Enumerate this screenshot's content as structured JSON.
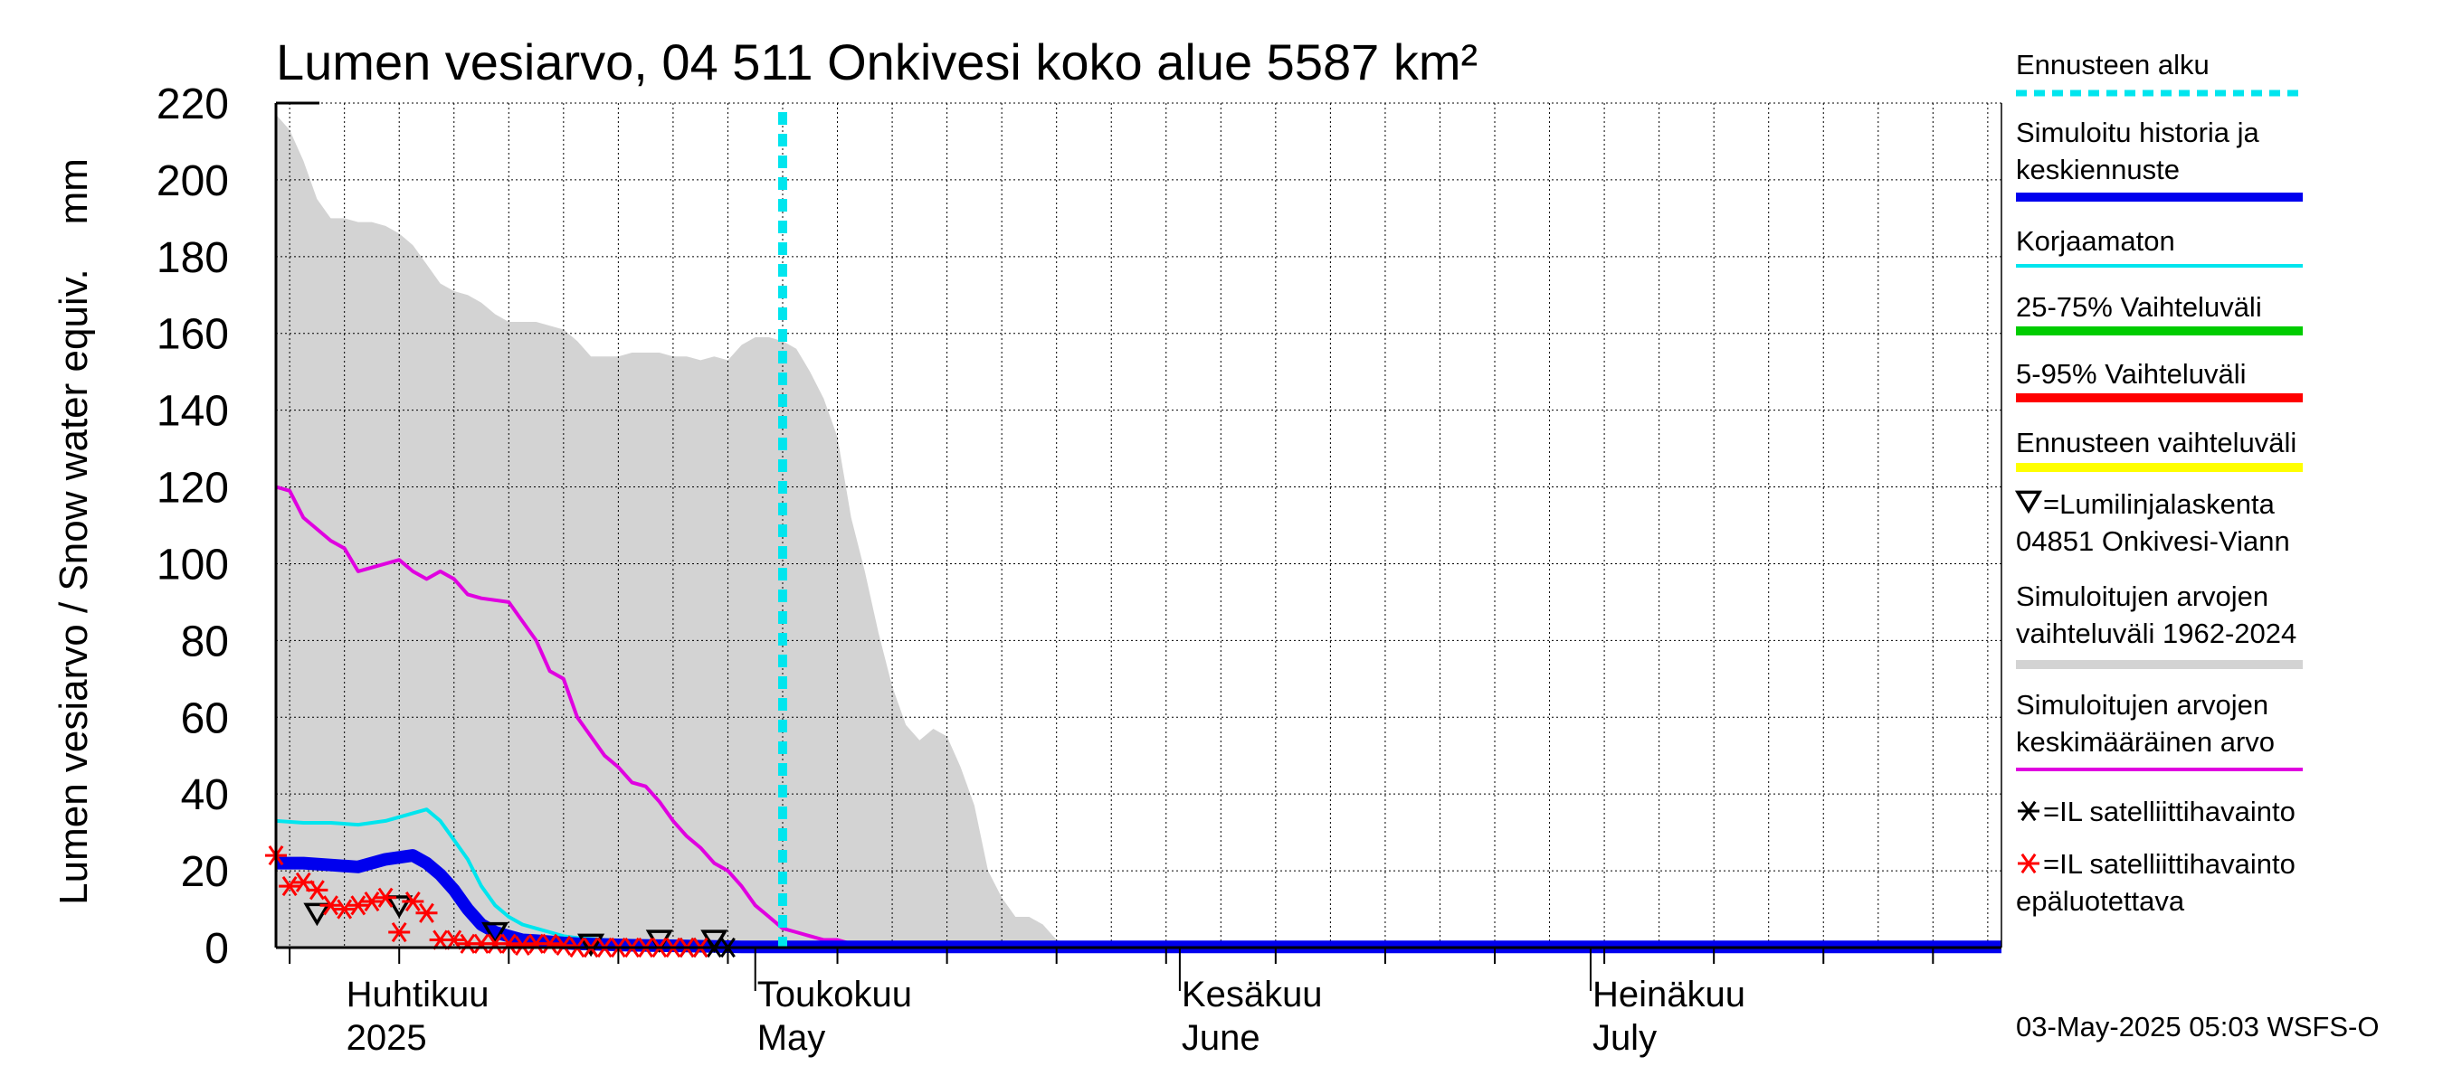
{
  "chart_data": {
    "type": "line",
    "title": "Lumen vesiarvo, 04 511 Onkivesi koko alue 5587 km²",
    "ylabel": "Lumen vesiarvo / Snow water equiv.    mm",
    "ylim": [
      0,
      220
    ],
    "yticks": [
      0,
      20,
      40,
      60,
      80,
      100,
      120,
      140,
      160,
      180,
      200,
      220
    ],
    "xlim": [
      "2025-03-27",
      "2025-07-31"
    ],
    "x_tick_labels": [
      {
        "date": "2025-04-01",
        "line1": "Huhtikuu",
        "line2": "2025"
      },
      {
        "date": "2025-05-01",
        "line1": "Toukokuu",
        "line2": "May"
      },
      {
        "date": "2025-06-01",
        "line1": "Kesäkuu",
        "line2": "June"
      },
      {
        "date": "2025-07-01",
        "line1": "Heinäkuu",
        "line2": "July"
      }
    ],
    "forecast_start": "2025-05-03",
    "grid": true,
    "legend_position": "right",
    "series": [
      {
        "name": "Simuloitujen arvojen vaihteluväli 1962-2024",
        "kind": "band",
        "color": "#d3d3d3",
        "x": [
          "2025-03-27",
          "2025-03-28",
          "2025-03-29",
          "2025-03-30",
          "2025-03-31",
          "2025-04-01",
          "2025-04-02",
          "2025-04-03",
          "2025-04-04",
          "2025-04-05",
          "2025-04-06",
          "2025-04-07",
          "2025-04-08",
          "2025-04-09",
          "2025-04-10",
          "2025-04-11",
          "2025-04-12",
          "2025-04-13",
          "2025-04-14",
          "2025-04-15",
          "2025-04-16",
          "2025-04-17",
          "2025-04-18",
          "2025-04-19",
          "2025-04-20",
          "2025-04-21",
          "2025-04-22",
          "2025-04-23",
          "2025-04-24",
          "2025-04-25",
          "2025-04-26",
          "2025-04-27",
          "2025-04-28",
          "2025-04-29",
          "2025-04-30",
          "2025-05-01",
          "2025-05-02",
          "2025-05-03",
          "2025-05-04",
          "2025-05-05",
          "2025-05-06",
          "2025-05-07",
          "2025-05-08",
          "2025-05-09",
          "2025-05-10",
          "2025-05-11",
          "2025-05-12",
          "2025-05-13",
          "2025-05-14",
          "2025-05-15",
          "2025-05-16",
          "2025-05-17",
          "2025-05-18",
          "2025-05-19",
          "2025-05-20",
          "2025-05-21",
          "2025-05-22",
          "2025-05-23",
          "2025-05-24",
          "2025-05-25"
        ],
        "upper": [
          217,
          213,
          205,
          195,
          190,
          190,
          189,
          189,
          188,
          186,
          183,
          178,
          173,
          171,
          170,
          168,
          165,
          163,
          163,
          163,
          162,
          161,
          158,
          154,
          154,
          154,
          155,
          155,
          155,
          154,
          154,
          153,
          154,
          153,
          157,
          159,
          159,
          158,
          156,
          150,
          143,
          133,
          112,
          98,
          82,
          68,
          58,
          54,
          57,
          55,
          47,
          37,
          20,
          13,
          8,
          8,
          6,
          2,
          1,
          0
        ],
        "lower": [
          0,
          0,
          0,
          0,
          0,
          0,
          0,
          0,
          0,
          0,
          0,
          0,
          0,
          0,
          0,
          0,
          0,
          0,
          0,
          0,
          0,
          0,
          0,
          0,
          0,
          0,
          0,
          0,
          0,
          0,
          0,
          0,
          0,
          0,
          0,
          0,
          0,
          0,
          0,
          0,
          0,
          0,
          0,
          0,
          0,
          0,
          0,
          0,
          0,
          0,
          0,
          0,
          0,
          0,
          0,
          0,
          0,
          0,
          0,
          0
        ]
      },
      {
        "name": "Simuloitujen arvojen keskimääräinen arvo",
        "kind": "line",
        "color": "#e000e0",
        "width": 4,
        "x": [
          "2025-03-27",
          "2025-03-28",
          "2025-03-29",
          "2025-03-31",
          "2025-04-01",
          "2025-04-02",
          "2025-04-03",
          "2025-04-05",
          "2025-04-06",
          "2025-04-07",
          "2025-04-08",
          "2025-04-09",
          "2025-04-10",
          "2025-04-11",
          "2025-04-13",
          "2025-04-14",
          "2025-04-15",
          "2025-04-16",
          "2025-04-17",
          "2025-04-18",
          "2025-04-19",
          "2025-04-20",
          "2025-04-21",
          "2025-04-22",
          "2025-04-23",
          "2025-04-24",
          "2025-04-25",
          "2025-04-26",
          "2025-04-27",
          "2025-04-28",
          "2025-04-29",
          "2025-04-30",
          "2025-05-01",
          "2025-05-02",
          "2025-05-03",
          "2025-05-04",
          "2025-05-05",
          "2025-05-06",
          "2025-05-07",
          "2025-05-08",
          "2025-05-09",
          "2025-05-10",
          "2025-05-12",
          "2025-05-15",
          "2025-05-20",
          "2025-05-25",
          "2025-06-01",
          "2025-07-31"
        ],
        "values": [
          120,
          119,
          112,
          106,
          104,
          98,
          99,
          101,
          98,
          96,
          98,
          96,
          92,
          91,
          90,
          85,
          80,
          72,
          70,
          60,
          55,
          50,
          47,
          43,
          42,
          38,
          33,
          29,
          26,
          22,
          20,
          16,
          11,
          8,
          5,
          4,
          3,
          2,
          2,
          1,
          1,
          0.5,
          0.3,
          0.2,
          0.1,
          0,
          0,
          0
        ]
      },
      {
        "name": "Korjaamaton",
        "kind": "line",
        "color": "#00e5ee",
        "width": 4,
        "x": [
          "2025-03-27",
          "2025-03-29",
          "2025-03-31",
          "2025-04-02",
          "2025-04-04",
          "2025-04-06",
          "2025-04-07",
          "2025-04-08",
          "2025-04-09",
          "2025-04-10",
          "2025-04-11",
          "2025-04-12",
          "2025-04-13",
          "2025-04-14",
          "2025-04-15",
          "2025-04-16",
          "2025-04-17",
          "2025-04-18",
          "2025-04-20",
          "2025-04-22",
          "2025-04-24",
          "2025-04-26",
          "2025-04-28",
          "2025-04-30",
          "2025-05-03",
          "2025-07-31"
        ],
        "values": [
          33,
          32.5,
          32.5,
          32,
          33,
          35,
          36,
          33,
          28,
          23,
          16,
          11,
          8,
          6,
          5,
          4,
          3,
          2.5,
          2,
          1.5,
          1,
          0.8,
          0.5,
          0.3,
          0.2,
          0
        ]
      },
      {
        "name": "Simuloitu historia ja keskiennuste",
        "kind": "line",
        "color": "#0000ee",
        "width": 14,
        "x": [
          "2025-03-27",
          "2025-03-29",
          "2025-03-31",
          "2025-04-02",
          "2025-04-04",
          "2025-04-06",
          "2025-04-07",
          "2025-04-08",
          "2025-04-09",
          "2025-04-10",
          "2025-04-11",
          "2025-04-12",
          "2025-04-13",
          "2025-04-14",
          "2025-04-15",
          "2025-04-16",
          "2025-04-17",
          "2025-04-18",
          "2025-04-20",
          "2025-04-22",
          "2025-04-24",
          "2025-04-26",
          "2025-04-28",
          "2025-04-30",
          "2025-05-03",
          "2025-07-31"
        ],
        "values": [
          22,
          22,
          21.5,
          21,
          23,
          24,
          22,
          19,
          15,
          10,
          6,
          4,
          3,
          2,
          1.8,
          1.5,
          1.2,
          1,
          0.8,
          0.6,
          0.5,
          0.4,
          0.3,
          0.2,
          0.2,
          0.2
        ]
      },
      {
        "name": "Lumilinjalaskenta 04851 Onkivesi-Viann",
        "kind": "marker-triangle",
        "color": "#000000",
        "x": [
          "2025-03-30",
          "2025-04-05",
          "2025-04-12",
          "2025-04-19",
          "2025-04-24",
          "2025-04-28"
        ],
        "values": [
          8,
          10,
          3,
          0,
          1,
          1
        ]
      },
      {
        "name": "IL satelliittihavainto",
        "kind": "marker-asterisk",
        "color": "#000000",
        "x": [
          "2025-04-19",
          "2025-04-26",
          "2025-04-27",
          "2025-04-28",
          "2025-04-29"
        ],
        "values": [
          0,
          0,
          0,
          0,
          0
        ]
      },
      {
        "name": "IL satelliittihavainto epäluotettava",
        "kind": "marker-asterisk",
        "color": "#ff0000",
        "x": [
          "2025-03-27",
          "2025-03-28",
          "2025-03-29",
          "2025-03-30",
          "2025-03-31",
          "2025-04-01",
          "2025-04-02",
          "2025-04-03",
          "2025-04-04",
          "2025-04-05",
          "2025-04-06",
          "2025-04-07",
          "2025-04-08",
          "2025-04-09",
          "2025-04-10",
          "2025-04-11",
          "2025-04-12",
          "2025-04-13",
          "2025-04-14",
          "2025-04-15",
          "2025-04-16",
          "2025-04-17",
          "2025-04-18",
          "2025-04-19",
          "2025-04-20",
          "2025-04-21",
          "2025-04-22",
          "2025-04-23",
          "2025-04-24",
          "2025-04-25",
          "2025-04-26",
          "2025-04-27"
        ],
        "values": [
          24,
          16,
          17,
          15,
          11,
          10,
          11,
          12,
          13,
          4,
          12,
          9,
          2,
          2,
          1,
          1,
          1,
          1,
          0.5,
          1,
          1,
          0.5,
          0,
          0,
          0,
          0,
          0,
          0,
          0,
          0,
          0,
          0
        ]
      }
    ],
    "legend": [
      {
        "label": "Ennusteen alku",
        "kind": "dotted-line",
        "color": "#00e5ee"
      },
      {
        "label": "Simuloitu historia ja keskiennuste",
        "kind": "thick-line",
        "color": "#0000ee"
      },
      {
        "label": "Korjaamaton",
        "kind": "thin-line",
        "color": "#00e5ee"
      },
      {
        "label": "25-75% Vaihteluväli",
        "kind": "thick-line",
        "color": "#00cc00"
      },
      {
        "label": "5-95% Vaihteluväli",
        "kind": "thick-line",
        "color": "#ff0000"
      },
      {
        "label": "Ennusteen vaihteluväli",
        "kind": "thick-line",
        "color": "#ffff00"
      },
      {
        "label": "=Lumilinjalaskenta 04851 Onkivesi-Viann",
        "kind": "triangle",
        "color": "#000000"
      },
      {
        "label": "Simuloitujen arvojen vaihteluväli 1962-2024",
        "kind": "thick-line",
        "color": "#d3d3d3"
      },
      {
        "label": "Simuloitujen arvojen keskimääräinen arvo",
        "kind": "thin-line",
        "color": "#e000e0"
      },
      {
        "label": "=IL satelliittihavainto",
        "kind": "asterisk",
        "color": "#000000"
      },
      {
        "label": "=IL satelliittihavainto epäluotettava",
        "kind": "asterisk",
        "color": "#ff0000"
      }
    ],
    "footer": "03-May-2025 05:03 WSFS-O"
  }
}
